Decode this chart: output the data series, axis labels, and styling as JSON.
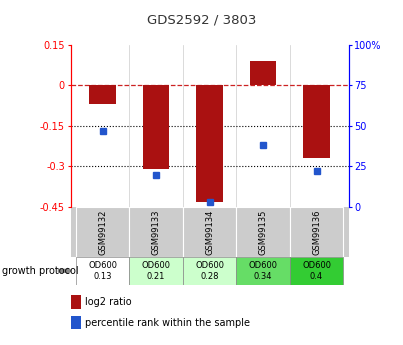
{
  "title": "GDS2592 / 3803",
  "samples": [
    "GSM99132",
    "GSM99133",
    "GSM99134",
    "GSM99135",
    "GSM99136"
  ],
  "log2_ratio": [
    -0.07,
    -0.31,
    -0.43,
    0.09,
    -0.27
  ],
  "percentile_rank": [
    47,
    20,
    3,
    38,
    22
  ],
  "ylim_left": [
    -0.45,
    0.15
  ],
  "ylim_right": [
    0,
    100
  ],
  "bar_color": "#aa1111",
  "dot_color": "#2255cc",
  "bar_width": 0.5,
  "protocol_labels": [
    "OD600\n0.13",
    "OD600\n0.21",
    "OD600\n0.28",
    "OD600\n0.34",
    "OD600\n0.4"
  ],
  "protocol_colors": [
    "#ffffff",
    "#ccffcc",
    "#ccffcc",
    "#66dd66",
    "#33cc33"
  ],
  "legend_bar_label": "log2 ratio",
  "legend_dot_label": "percentile rank within the sample",
  "growth_protocol_label": "growth protocol",
  "background_color": "#ffffff"
}
